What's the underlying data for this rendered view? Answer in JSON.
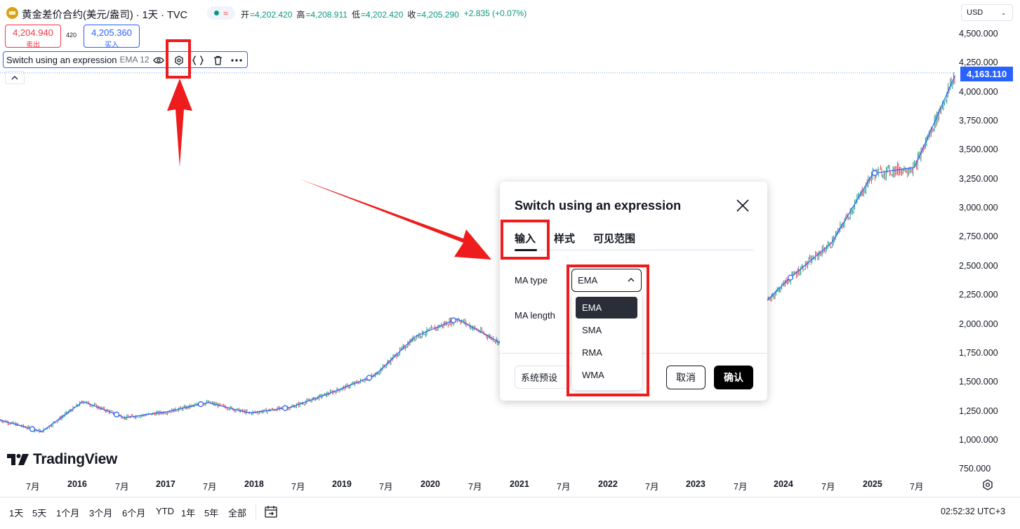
{
  "header": {
    "symbol_title": "黄金差价合约(美元/盎司) · 1天 · TVC",
    "market_status_icon": "market-open-dot-icon",
    "ohlc": [
      {
        "label": "开",
        "value": "=4,202.420"
      },
      {
        "label": "高",
        "value": "=4,208.911"
      },
      {
        "label": "低",
        "value": "=4,202.420"
      },
      {
        "label": "收",
        "value": "=4,205.290"
      },
      {
        "label": "",
        "value": "+2.835 (+0.07%)"
      }
    ],
    "colors": {
      "up": "#089981",
      "down": "#f23645",
      "accent": "#2962ff"
    }
  },
  "trade": {
    "sell_price": "4,204.940",
    "sell_label": "卖出",
    "spread": "420",
    "buy_price": "4,205.360",
    "buy_label": "买入"
  },
  "indicator": {
    "name": "Switch using an expression",
    "params": "EMA 12",
    "icons": [
      "eye-icon",
      "settings-icon",
      "source-code-icon",
      "delete-icon",
      "more-icon"
    ],
    "collapse_icon": "chevron-up-icon"
  },
  "price_scale": {
    "currency": "USD",
    "labels": [
      "4,500.000",
      "4,250.000",
      "4,000.000",
      "3,750.000",
      "3,500.000",
      "3,250.000",
      "3,000.000",
      "2,750.000",
      "2,500.000",
      "2,250.000",
      "2,000.000",
      "1,750.000",
      "1,500.000",
      "1,250.000",
      "1,000.000",
      "750.000"
    ],
    "last_price": "4,163.110"
  },
  "time_scale": {
    "labels": [
      "7月",
      "2016",
      "7月",
      "2017",
      "7月",
      "2018",
      "7月",
      "2019",
      "7月",
      "2020",
      "7月",
      "2021",
      "7月",
      "2022",
      "7月",
      "2023",
      "7月",
      "2024",
      "7月",
      "2025",
      "7月"
    ]
  },
  "branding": {
    "logo_text": "TradingView"
  },
  "bottom_bar": {
    "ranges": [
      "1天",
      "5天",
      "1个月",
      "3个月",
      "6个月",
      "YTD",
      "1年",
      "5年",
      "全部"
    ],
    "clock": "02:52:32 UTC+3"
  },
  "dialog": {
    "title": "Switch using an expression",
    "tabs": [
      "输入",
      "样式",
      "可见范围"
    ],
    "active_tab": "输入",
    "ma_type_label": "MA type",
    "ma_length_label": "MA length",
    "ma_type_value": "EMA",
    "ma_type_options": [
      "EMA",
      "SMA",
      "RMA",
      "WMA"
    ],
    "preset_label": "系统预设",
    "cancel_label": "取消",
    "ok_label": "确认"
  },
  "chart_data": {
    "type": "candlestick",
    "ylim": [
      750,
      4500
    ],
    "series": [
      {
        "name": "",
        "x": [
          "2015-06",
          "2016-01",
          "2016-07",
          "2017-01",
          "2017-07",
          "2018-01",
          "2018-07",
          "2019-01",
          "2019-07",
          "2020-01",
          "2020-07",
          "2020-08",
          "2021-01",
          "2021-07",
          "2022-01",
          "2022-07",
          "2023-01",
          "2023-07",
          "2024-01",
          "2024-07",
          "2025-01",
          "2025-04",
          "2025-07",
          "2025-10"
        ],
        "values": [
          1180,
          1080,
          1340,
          1200,
          1250,
          1330,
          1240,
          1290,
          1420,
          1560,
          1900,
          2050,
          1850,
          1800,
          1820,
          1720,
          1900,
          1950,
          2050,
          2400,
          2700,
          3300,
          3350,
          4163
        ]
      }
    ]
  }
}
